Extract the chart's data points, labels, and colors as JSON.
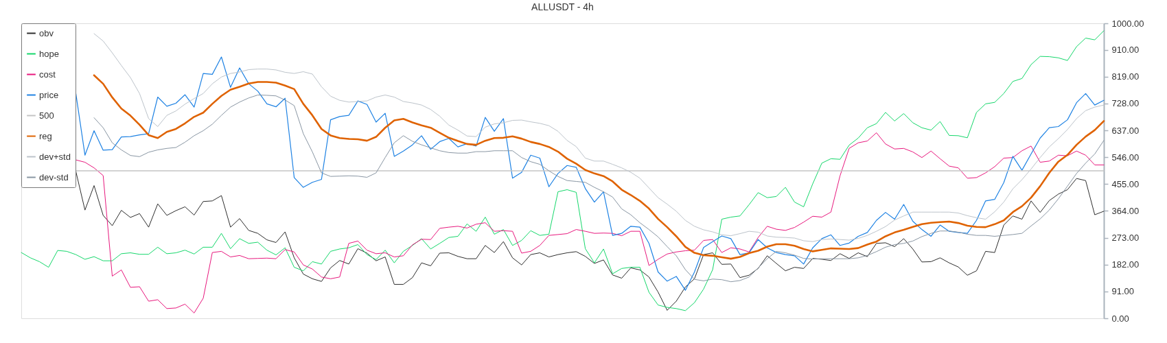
{
  "chart_data": {
    "type": "line",
    "title": "ALLUSDT - 4h",
    "categories": [
      null,
      null,
      null,
      null,
      null,
      null,
      null,
      null,
      null,
      null,
      null,
      null,
      null,
      null,
      null,
      null,
      null,
      null,
      null,
      null,
      null,
      null,
      null,
      null,
      null,
      null,
      null,
      null,
      null,
      null,
      null,
      null,
      null,
      null,
      null,
      null,
      null,
      null,
      null,
      null,
      null,
      null,
      null,
      null,
      null,
      null,
      null,
      null,
      null,
      null,
      null,
      null,
      null,
      null,
      null,
      null,
      null,
      null,
      null,
      null,
      null,
      null,
      null,
      null,
      null,
      null,
      null,
      null,
      null,
      null,
      null,
      null,
      null,
      null,
      null,
      null,
      null,
      null,
      null,
      null,
      null,
      null,
      null,
      null,
      null,
      null,
      null,
      null,
      null,
      null,
      null,
      null,
      null,
      null,
      null,
      null,
      null,
      null,
      null,
      null,
      null,
      null,
      null,
      null,
      null,
      null,
      null,
      null,
      null,
      null,
      null,
      null,
      null,
      null,
      null,
      null,
      null,
      null,
      null,
      null
    ],
    "series": [
      {
        "name": "obv",
        "color": "#2e2e2e",
        "values": [
          null,
          null,
          null,
          null,
          null,
          null,
          498,
          367,
          450,
          349,
          314,
          366,
          342,
          355,
          309,
          388,
          349,
          365,
          378,
          350,
          396,
          398,
          416,
          309,
          338,
          298,
          288,
          266,
          257,
          293,
          205,
          150,
          134,
          125,
          171,
          196,
          184,
          236,
          221,
          195,
          208,
          115,
          115,
          138,
          188,
          178,
          221,
          222,
          210,
          202,
          202,
          247,
          223,
          260,
          205,
          181,
          216,
          222,
          208,
          216,
          222,
          226,
          210,
          186,
          198,
          147,
          136,
          171,
          164,
          140,
          89,
          27,
          58,
          106,
          134,
          216,
          222,
          183,
          184,
          138,
          146,
          169,
          212,
          186,
          161,
          173,
          169,
          203,
          200,
          196,
          219,
          203,
          222,
          209,
          254,
          256,
          243,
          270,
          235,
          191,
          192,
          205,
          188,
          174,
          146,
          161,
          227,
          223,
          316,
          347,
          336,
          398,
          359,
          399,
          421,
          436,
          474,
          467,
          351,
          363
        ]
      },
      {
        "name": "hope",
        "color": "#14d76a",
        "values": [
          223,
          205,
          192,
          173,
          230,
          227,
          216,
          200,
          209,
          195,
          195,
          219,
          222,
          217,
          217,
          241,
          219,
          222,
          231,
          218,
          241,
          241,
          288,
          236,
          270,
          254,
          258,
          231,
          215,
          239,
          173,
          161,
          192,
          184,
          227,
          235,
          239,
          250,
          216,
          199,
          231,
          188,
          227,
          247,
          270,
          235,
          254,
          274,
          278,
          320,
          295,
          343,
          285,
          301,
          247,
          264,
          297,
          281,
          285,
          429,
          436,
          427,
          236,
          188,
          235,
          151,
          169,
          173,
          173,
          88,
          45,
          37,
          33,
          26,
          53,
          99,
          165,
          336,
          343,
          347,
          385,
          426,
          409,
          413,
          444,
          394,
          378,
          456,
          526,
          541,
          539,
          587,
          611,
          646,
          660,
          698,
          669,
          694,
          663,
          646,
          638,
          667,
          620,
          619,
          612,
          698,
          727,
          732,
          762,
          803,
          813,
          860,
          888,
          887,
          883,
          874,
          921,
          950,
          944,
          975
        ]
      },
      {
        "name": "cost",
        "color": "#e8177d",
        "values": [
          null,
          null,
          null,
          null,
          null,
          null,
          537,
          529,
          510,
          484,
          143,
          164,
          105,
          107,
          58,
          63,
          33,
          35,
          48,
          18,
          68,
          223,
          227,
          208,
          213,
          202,
          203,
          204,
          202,
          233,
          225,
          181,
          167,
          140,
          134,
          140,
          254,
          262,
          231,
          219,
          222,
          208,
          212,
          249,
          268,
          267,
          305,
          309,
          312,
          306,
          319,
          324,
          295,
          297,
          295,
          221,
          227,
          247,
          281,
          284,
          287,
          301,
          295,
          288,
          289,
          288,
          280,
          295,
          295,
          179,
          200,
          218,
          225,
          229,
          231,
          264,
          267,
          223,
          239,
          235,
          225,
          274,
          312,
          302,
          298,
          308,
          326,
          346,
          343,
          360,
          483,
          576,
          595,
          601,
          629,
          591,
          574,
          576,
          564,
          545,
          567,
          541,
          516,
          510,
          475,
          477,
          493,
          514,
          543,
          545,
          568,
          584,
          529,
          533,
          553,
          551,
          567,
          553,
          520,
          520
        ]
      },
      {
        "name": "price",
        "color": "#1e82e3",
        "values": [
          null,
          null,
          null,
          null,
          null,
          null,
          762,
          553,
          636,
          570,
          572,
          615,
          616,
          622,
          626,
          750,
          719,
          729,
          758,
          716,
          830,
          827,
          886,
          783,
          849,
          795,
          770,
          727,
          717,
          746,
          477,
          444,
          461,
          471,
          673,
          684,
          688,
          737,
          725,
          665,
          695,
          549,
          567,
          588,
          619,
          573,
          599,
          610,
          581,
          592,
          584,
          681,
          634,
          677,
          475,
          495,
          553,
          543,
          446,
          491,
          518,
          512,
          440,
          394,
          429,
          281,
          288,
          312,
          309,
          254,
          157,
          126,
          142,
          95,
          157,
          240,
          260,
          279,
          270,
          216,
          222,
          267,
          239,
          223,
          216,
          212,
          184,
          239,
          270,
          283,
          247,
          255,
          278,
          291,
          332,
          359,
          336,
          386,
          329,
          301,
          278,
          316,
          295,
          291,
          288,
          332,
          398,
          403,
          460,
          549,
          502,
          557,
          611,
          646,
          650,
          673,
          731,
          762,
          723,
          739
        ]
      },
      {
        "name": "500",
        "color": "#c4c4c4",
        "values": [
          null,
          null,
          null,
          null,
          null,
          null,
          500,
          500,
          500,
          500,
          500,
          500,
          500,
          500,
          500,
          500,
          500,
          500,
          500,
          500,
          500,
          500,
          500,
          500,
          500,
          500,
          500,
          500,
          500,
          500,
          500,
          500,
          500,
          500,
          500,
          500,
          500,
          500,
          500,
          500,
          500,
          500,
          500,
          500,
          500,
          500,
          500,
          500,
          500,
          500,
          500,
          500,
          500,
          500,
          500,
          500,
          500,
          500,
          500,
          500,
          500,
          500,
          500,
          500,
          500,
          500,
          500,
          500,
          500,
          500,
          500,
          500,
          500,
          500,
          500,
          500,
          500,
          500,
          500,
          500,
          500,
          500,
          500,
          500,
          500,
          500,
          500,
          500,
          500,
          500,
          500,
          500,
          500,
          500,
          500,
          500,
          500,
          500,
          500,
          500,
          500,
          500,
          500,
          500,
          500,
          500,
          500,
          500,
          500,
          500,
          500,
          500,
          500,
          500,
          500,
          500,
          500,
          500,
          500,
          500
        ]
      },
      {
        "name": "reg",
        "color": "#df6200",
        "values": [
          null,
          null,
          null,
          null,
          null,
          null,
          null,
          null,
          824,
          795,
          749,
          711,
          687,
          656,
          621,
          611,
          632,
          642,
          661,
          683,
          697,
          727,
          754,
          775,
          785,
          796,
          801,
          801,
          799,
          789,
          777,
          727,
          688,
          642,
          620,
          611,
          608,
          607,
          602,
          615,
          646,
          671,
          676,
          664,
          654,
          646,
          629,
          612,
          601,
          591,
          588,
          602,
          611,
          612,
          617,
          609,
          598,
          591,
          581,
          565,
          541,
          524,
          503,
          491,
          482,
          464,
          436,
          418,
          398,
          372,
          337,
          309,
          278,
          242,
          222,
          214,
          212,
          207,
          202,
          208,
          221,
          229,
          243,
          251,
          251,
          246,
          235,
          227,
          232,
          237,
          236,
          235,
          238,
          250,
          260,
          278,
          291,
          300,
          310,
          319,
          324,
          326,
          328,
          323,
          314,
          310,
          309,
          319,
          332,
          360,
          380,
          409,
          448,
          493,
          531,
          554,
          588,
          616,
          638,
          669
        ]
      },
      {
        "name": "dev+std",
        "color": "#bcc3ca",
        "values": [
          null,
          null,
          null,
          null,
          null,
          null,
          null,
          null,
          965,
          940,
          900,
          857,
          816,
          762,
          677,
          650,
          688,
          703,
          726,
          745,
          762,
          795,
          818,
          830,
          835,
          843,
          845,
          845,
          842,
          834,
          830,
          836,
          828,
          785,
          753,
          739,
          733,
          735,
          737,
          750,
          757,
          750,
          735,
          730,
          723,
          708,
          685,
          655,
          638,
          618,
          616,
          648,
          659,
          663,
          671,
          672,
          666,
          661,
          653,
          634,
          603,
          582,
          543,
          533,
          533,
          522,
          510,
          495,
          475,
          442,
          409,
          387,
          363,
          332,
          312,
          300,
          293,
          283,
          280,
          287,
          295,
          292,
          279,
          275,
          274,
          272,
          263,
          260,
          267,
          269,
          267,
          265,
          271,
          281,
          295,
          311,
          333,
          347,
          360,
          360,
          360,
          360,
          360,
          357,
          348,
          341,
          336,
          361,
          394,
          439,
          470,
          506,
          545,
          581,
          609,
          640,
          677,
          704,
          716,
          723
        ]
      },
      {
        "name": "dev-std",
        "color": "#8996a3",
        "values": [
          null,
          null,
          null,
          null,
          null,
          null,
          null,
          null,
          680,
          646,
          595,
          571,
          552,
          548,
          563,
          571,
          576,
          579,
          597,
          619,
          636,
          658,
          688,
          716,
          733,
          747,
          757,
          756,
          754,
          740,
          721,
          626,
          564,
          493,
          481,
          482,
          483,
          482,
          478,
          493,
          545,
          595,
          619,
          600,
          588,
          578,
          568,
          562,
          560,
          560,
          565,
          565,
          568,
          568,
          568,
          545,
          531,
          522,
          500,
          481,
          467,
          464,
          461,
          444,
          429,
          411,
          371,
          351,
          324,
          301,
          276,
          243,
          212,
          165,
          132,
          127,
          133,
          131,
          124,
          128,
          140,
          171,
          202,
          227,
          222,
          214,
          203,
          201,
          202,
          202,
          202,
          202,
          205,
          213,
          226,
          241,
          250,
          254,
          262,
          277,
          288,
          296,
          296,
          292,
          285,
          281,
          281,
          278,
          281,
          284,
          288,
          313,
          337,
          367,
          405,
          448,
          491,
          526,
          557,
          603
        ]
      }
    ],
    "ylim": [
      0,
      1000
    ],
    "yticks": [
      {
        "value": 0,
        "label": "0.00"
      },
      {
        "value": 91,
        "label": "91.00"
      },
      {
        "value": 182,
        "label": "182.00"
      },
      {
        "value": 273,
        "label": "273.00"
      },
      {
        "value": 364,
        "label": "364.00"
      },
      {
        "value": 455,
        "label": "455.00"
      },
      {
        "value": 546,
        "label": "546.00"
      },
      {
        "value": 637,
        "label": "637.00"
      },
      {
        "value": 728,
        "label": "728.00"
      },
      {
        "value": 819,
        "label": "819.00"
      },
      {
        "value": 910,
        "label": "910.00"
      },
      {
        "value": 1000,
        "label": "1000.00"
      }
    ],
    "legend": "top left",
    "tick_labels": "y"
  }
}
